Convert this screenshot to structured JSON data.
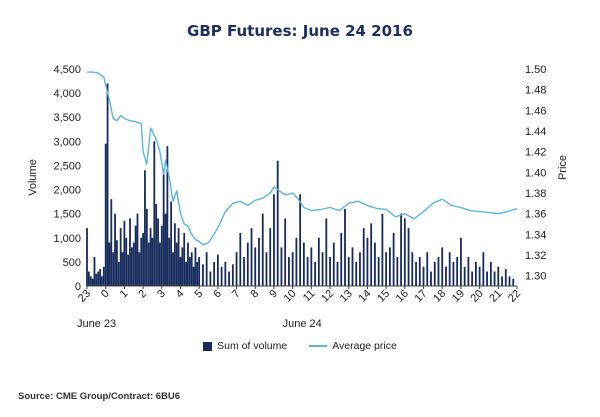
{
  "chart_data": {
    "type": "bar+line",
    "title": "GBP Futures: June 24 2016",
    "ylabel_left": "Volume",
    "ylabel_right": "Price",
    "ylim_left": [
      0,
      4500
    ],
    "ylim_right": [
      1.29,
      1.5
    ],
    "yticks_left": [
      "0",
      "500",
      "1,000",
      "1,500",
      "2,000",
      "2,500",
      "3,000",
      "3,500",
      "4,000",
      "4,500"
    ],
    "yticks_right": [
      "1.30",
      "1.32",
      "1.34",
      "1.36",
      "1.38",
      "1.40",
      "1.42",
      "1.44",
      "1.46",
      "1.48",
      "1.50"
    ],
    "x_ticks": [
      "23",
      "0",
      "1",
      "2",
      "3",
      "4",
      "5",
      "6",
      "7",
      "8",
      "9",
      "10",
      "11",
      "12",
      "13",
      "14",
      "15",
      "16",
      "17",
      "18",
      "19",
      "20",
      "21",
      "22"
    ],
    "x_date_labels": [
      {
        "label": "June 23",
        "hour": 23
      },
      {
        "label": "June 24",
        "hour": 10
      }
    ],
    "series": [
      {
        "name": "Sum of volume",
        "type": "bar",
        "color": "#162a5c",
        "hours": [
          23.0,
          23.1,
          23.2,
          23.3,
          23.4,
          23.5,
          23.6,
          23.7,
          23.8,
          23.9,
          0.0,
          0.1,
          0.2,
          0.3,
          0.4,
          0.5,
          0.6,
          0.7,
          0.8,
          0.9,
          1.0,
          1.1,
          1.2,
          1.3,
          1.4,
          1.5,
          1.6,
          1.7,
          1.8,
          1.9,
          2.0,
          2.1,
          2.2,
          2.3,
          2.4,
          2.5,
          2.6,
          2.7,
          2.8,
          2.9,
          3.0,
          3.1,
          3.2,
          3.3,
          3.4,
          3.5,
          3.6,
          3.7,
          3.8,
          3.9,
          4.0,
          4.1,
          4.2,
          4.3,
          4.4,
          4.5,
          4.6,
          4.7,
          4.8,
          4.9,
          5.0,
          5.2,
          5.4,
          5.6,
          5.8,
          6.0,
          6.2,
          6.4,
          6.6,
          6.8,
          7.0,
          7.2,
          7.4,
          7.6,
          7.8,
          8.0,
          8.2,
          8.4,
          8.6,
          8.8,
          9.0,
          9.2,
          9.4,
          9.6,
          9.8,
          10.0,
          10.2,
          10.4,
          10.6,
          10.8,
          11.0,
          11.2,
          11.4,
          11.6,
          11.8,
          12.0,
          12.2,
          12.4,
          12.6,
          12.8,
          13.0,
          13.2,
          13.4,
          13.6,
          13.8,
          14.0,
          14.2,
          14.4,
          14.6,
          14.8,
          15.0,
          15.2,
          15.4,
          15.6,
          15.8,
          16.0,
          16.2,
          16.4,
          16.6,
          16.8,
          17.0,
          17.2,
          17.4,
          17.6,
          17.8,
          18.0,
          18.2,
          18.4,
          18.6,
          18.8,
          19.0,
          19.2,
          19.4,
          19.6,
          19.8,
          20.0,
          20.2,
          20.4,
          20.6,
          20.8,
          21.0,
          21.2,
          21.4,
          21.6,
          21.8
        ],
        "values": [
          1200,
          300,
          200,
          150,
          600,
          250,
          300,
          350,
          200,
          400,
          2950,
          4200,
          900,
          1800,
          700,
          1500,
          950,
          500,
          1200,
          700,
          1350,
          1000,
          650,
          1400,
          800,
          900,
          1250,
          1500,
          700,
          1000,
          1100,
          2400,
          1600,
          900,
          1200,
          1000,
          3000,
          1700,
          1400,
          900,
          1250,
          2400,
          1500,
          2900,
          1000,
          1750,
          700,
          1300,
          900,
          1200,
          600,
          800,
          1100,
          500,
          900,
          600,
          700,
          400,
          800,
          500,
          600,
          450,
          700,
          300,
          500,
          650,
          400,
          500,
          300,
          450,
          700,
          1100,
          600,
          900,
          1200,
          800,
          1000,
          1500,
          700,
          1200,
          1900,
          2600,
          800,
          1400,
          600,
          700,
          1000,
          1900,
          900,
          600,
          800,
          500,
          1000,
          700,
          1400,
          600,
          900,
          500,
          1100,
          1600,
          600,
          800,
          500,
          700,
          1200,
          1000,
          1300,
          900,
          600,
          1500,
          700,
          800,
          1100,
          600,
          1500,
          1400,
          1200,
          700,
          500,
          600,
          400,
          700,
          300,
          500,
          600,
          800,
          400,
          700,
          500,
          600,
          1000,
          400,
          600,
          300,
          500,
          400,
          700,
          300,
          500,
          300,
          400,
          200,
          350,
          200,
          150
        ]
      },
      {
        "name": "Average price",
        "type": "line",
        "color": "#5ab4de",
        "hours": [
          23.0,
          23.3,
          23.6,
          23.9,
          24.2,
          24.4,
          24.6,
          24.8,
          25.0,
          25.3,
          25.6,
          25.9,
          26.0,
          26.2,
          26.4,
          26.7,
          26.9,
          27.1,
          27.2,
          27.4,
          27.6,
          27.8,
          28.0,
          28.2,
          28.4,
          28.6,
          28.8,
          29.0,
          29.2,
          29.5,
          29.8,
          30.1,
          30.4,
          30.8,
          31.2,
          31.6,
          32.0,
          32.4,
          32.8,
          33.0,
          33.3,
          33.6,
          34.0,
          34.3,
          34.6,
          35.0,
          35.5,
          36.0,
          36.5,
          37.0,
          37.5,
          38.0,
          38.5,
          39.0,
          39.5,
          40.0,
          40.5,
          41.0,
          41.5,
          42.0,
          42.5,
          43.0,
          43.5,
          44.0,
          44.5,
          45.0,
          45.5,
          46.0
        ],
        "values": [
          1.497,
          1.497,
          1.496,
          1.492,
          1.47,
          1.452,
          1.45,
          1.455,
          1.452,
          1.45,
          1.449,
          1.447,
          1.42,
          1.408,
          1.443,
          1.432,
          1.42,
          1.398,
          1.412,
          1.395,
          1.372,
          1.382,
          1.36,
          1.35,
          1.348,
          1.34,
          1.335,
          1.333,
          1.33,
          1.332,
          1.34,
          1.35,
          1.362,
          1.37,
          1.372,
          1.368,
          1.373,
          1.375,
          1.38,
          1.386,
          1.382,
          1.378,
          1.38,
          1.374,
          1.366,
          1.363,
          1.364,
          1.366,
          1.363,
          1.37,
          1.372,
          1.368,
          1.365,
          1.364,
          1.357,
          1.36,
          1.355,
          1.362,
          1.37,
          1.374,
          1.368,
          1.366,
          1.363,
          1.362,
          1.361,
          1.36,
          1.362,
          1.365
        ]
      }
    ],
    "legend_position": "bottom",
    "grid": false
  },
  "legend": {
    "volume_label": "Sum of volume",
    "price_label": "Average price"
  },
  "source": "Source: CME Group/Contract: 6BU6"
}
